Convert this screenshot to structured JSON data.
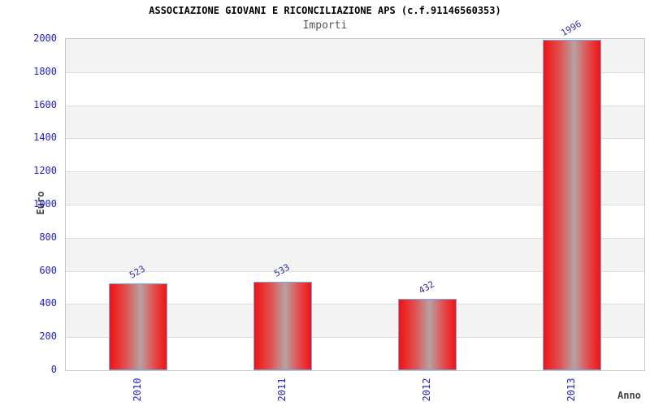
{
  "chart_data": {
    "type": "bar",
    "title": "ASSOCIAZIONE GIOVANI E RICONCILIAZIONE APS (c.f.91146560353)",
    "subtitle": "Importi",
    "xlabel": "Anno",
    "ylabel": "Euro",
    "categories": [
      "2010",
      "2011",
      "2012",
      "2013"
    ],
    "values": [
      523,
      533,
      432,
      1996
    ],
    "ylim": [
      0,
      2000
    ],
    "ytick_step": 200,
    "ytick_labels": [
      "0",
      "200",
      "400",
      "600",
      "800",
      "1000",
      "1200",
      "1400",
      "1600",
      "1800",
      "2000"
    ],
    "grid": "alternating-horizontal-bands",
    "legend": "none",
    "colors": {
      "bar_edge": "#f01313",
      "bar_mid": "#e24e4e",
      "bar_highlight": "#b7a2a2",
      "bar_border": "#7aa9e8",
      "tick_label": "#2222cc",
      "value_label": "#333399",
      "band_gray": "#f3f3f3",
      "band_white": "#ffffff",
      "gridline": "#dddddd",
      "plot_border": "#c8c8c8",
      "title": "#000000",
      "subtitle": "#555555",
      "axis_title": "#444444",
      "background": "#ffffff"
    }
  }
}
